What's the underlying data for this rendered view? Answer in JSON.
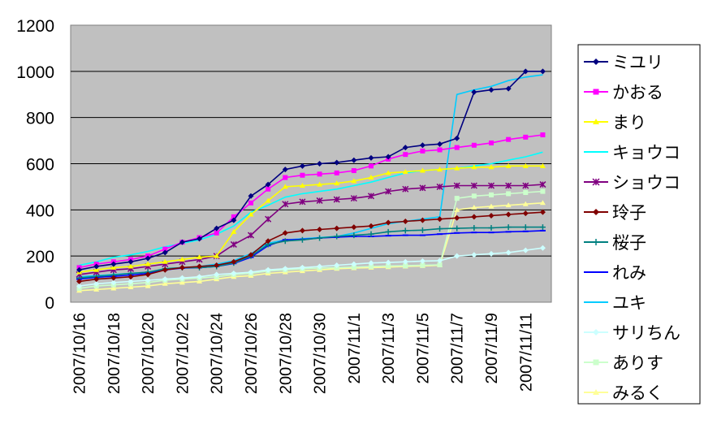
{
  "chart_data": {
    "type": "line",
    "title": "",
    "xlabel": "",
    "ylabel": "",
    "ylim": [
      0,
      1200
    ],
    "yticks": [
      0,
      200,
      400,
      600,
      800,
      1000,
      1200
    ],
    "grid": "horizontal",
    "legend": "right",
    "plot_background": "#c0c0c0",
    "x": [
      "2007/10/16",
      "2007/10/17",
      "2007/10/18",
      "2007/10/19",
      "2007/10/20",
      "2007/10/21",
      "2007/10/22",
      "2007/10/23",
      "2007/10/24",
      "2007/10/25",
      "2007/10/26",
      "2007/10/27",
      "2007/10/28",
      "2007/10/29",
      "2007/10/30",
      "2007/10/31",
      "2007/11/1",
      "2007/11/2",
      "2007/11/3",
      "2007/11/4",
      "2007/11/5",
      "2007/11/6",
      "2007/11/7",
      "2007/11/8",
      "2007/11/9",
      "2007/11/10",
      "2007/11/11",
      "2007/11/12"
    ],
    "xtick_labels": [
      "2007/10/16",
      "2007/10/18",
      "2007/10/20",
      "2007/10/22",
      "2007/10/24",
      "2007/10/26",
      "2007/10/28",
      "2007/10/30",
      "2007/11/1",
      "2007/11/3",
      "2007/11/5",
      "2007/11/7",
      "2007/11/9",
      "2007/11/11"
    ],
    "series": [
      {
        "name": "ミユリ",
        "color": "#000080",
        "marker": "diamond",
        "values": [
          140,
          155,
          165,
          175,
          190,
          215,
          260,
          275,
          320,
          355,
          460,
          510,
          575,
          590,
          600,
          605,
          615,
          625,
          630,
          670,
          680,
          685,
          710,
          910,
          920,
          925,
          1000,
          1000
        ]
      },
      {
        "name": "かおる",
        "color": "#ff00ff",
        "marker": "square",
        "values": [
          150,
          165,
          175,
          185,
          200,
          230,
          260,
          280,
          300,
          370,
          430,
          490,
          540,
          550,
          555,
          560,
          570,
          590,
          620,
          640,
          655,
          660,
          670,
          680,
          690,
          705,
          715,
          725
        ]
      },
      {
        "name": "まり",
        "color": "#ffff00",
        "marker": "triangle",
        "values": [
          130,
          140,
          150,
          155,
          165,
          175,
          185,
          195,
          200,
          305,
          380,
          440,
          500,
          505,
          510,
          515,
          525,
          540,
          560,
          565,
          570,
          575,
          580,
          585,
          585,
          590,
          590,
          590
        ]
      },
      {
        "name": "キョウコ",
        "color": "#00ffff",
        "marker": "none",
        "values": [
          160,
          175,
          195,
          205,
          220,
          240,
          255,
          270,
          295,
          330,
          390,
          420,
          455,
          470,
          480,
          490,
          505,
          520,
          540,
          560,
          570,
          575,
          580,
          590,
          600,
          615,
          630,
          650
        ]
      },
      {
        "name": "ショウコ",
        "color": "#800080",
        "marker": "star",
        "values": [
          120,
          130,
          140,
          145,
          155,
          165,
          175,
          185,
          200,
          250,
          290,
          360,
          425,
          435,
          440,
          445,
          450,
          460,
          480,
          490,
          495,
          500,
          505,
          505,
          505,
          505,
          505,
          510
        ]
      },
      {
        "name": "玲子",
        "color": "#800000",
        "marker": "diamond",
        "values": [
          90,
          100,
          105,
          110,
          120,
          140,
          150,
          155,
          160,
          175,
          205,
          265,
          300,
          310,
          315,
          320,
          325,
          330,
          345,
          350,
          355,
          360,
          365,
          370,
          375,
          380,
          385,
          390
        ]
      },
      {
        "name": "桜子",
        "color": "#008080",
        "marker": "plus",
        "values": [
          105,
          112,
          118,
          125,
          130,
          145,
          150,
          150,
          155,
          170,
          200,
          250,
          265,
          270,
          278,
          285,
          290,
          295,
          305,
          310,
          312,
          318,
          320,
          322,
          322,
          325,
          325,
          325
        ]
      },
      {
        "name": "れみ",
        "color": "#0000ff",
        "marker": "dash",
        "values": [
          100,
          108,
          112,
          118,
          125,
          140,
          148,
          150,
          155,
          168,
          195,
          245,
          270,
          272,
          278,
          282,
          285,
          285,
          288,
          290,
          290,
          295,
          300,
          302,
          302,
          305,
          307,
          310
        ]
      },
      {
        "name": "ユキ",
        "color": "#00ccff",
        "marker": "none",
        "values": [
          110,
          115,
          120,
          125,
          130,
          145,
          150,
          155,
          165,
          180,
          210,
          255,
          270,
          275,
          280,
          285,
          300,
          320,
          340,
          350,
          360,
          370,
          900,
          920,
          935,
          960,
          975,
          985
        ]
      },
      {
        "name": "サリちん",
        "color": "#ccffff",
        "marker": "diamond",
        "values": [
          70,
          80,
          85,
          90,
          95,
          100,
          105,
          110,
          120,
          125,
          130,
          140,
          145,
          150,
          155,
          160,
          165,
          170,
          172,
          175,
          178,
          180,
          200,
          205,
          210,
          215,
          225,
          235
        ]
      },
      {
        "name": "ありす",
        "color": "#ccffcc",
        "marker": "square",
        "values": [
          60,
          70,
          75,
          80,
          85,
          95,
          100,
          105,
          110,
          120,
          125,
          135,
          140,
          145,
          148,
          150,
          152,
          155,
          157,
          158,
          160,
          162,
          450,
          460,
          465,
          470,
          475,
          480
        ]
      },
      {
        "name": "みるく",
        "color": "#ffff99",
        "marker": "triangle",
        "values": [
          50,
          55,
          60,
          65,
          70,
          80,
          85,
          90,
          100,
          110,
          115,
          125,
          130,
          135,
          140,
          145,
          148,
          150,
          152,
          155,
          157,
          160,
          400,
          410,
          415,
          420,
          425,
          430
        ]
      }
    ]
  }
}
